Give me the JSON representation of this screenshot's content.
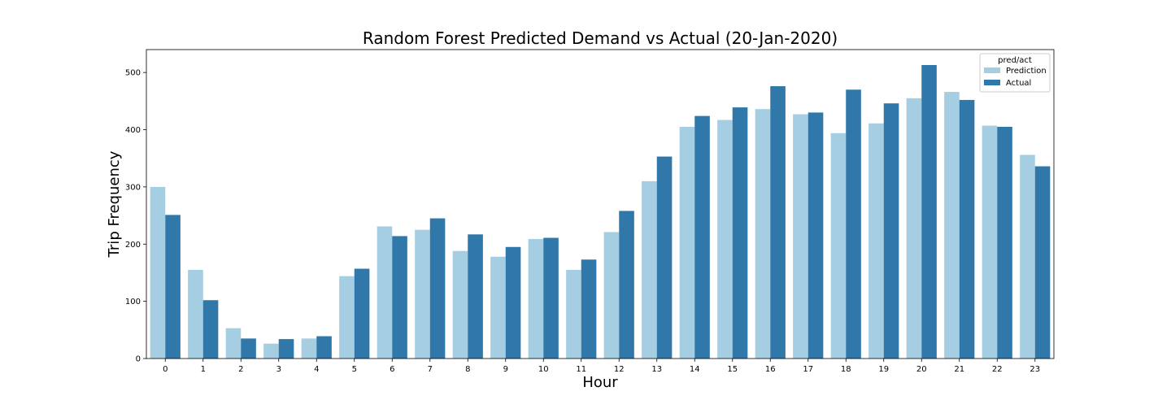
{
  "chart_data": {
    "type": "bar",
    "title": "Random Forest Predicted Demand vs Actual (20-Jan-2020)",
    "xlabel": "Hour",
    "ylabel": "Trip Frequency",
    "categories": [
      "0",
      "1",
      "2",
      "3",
      "4",
      "5",
      "6",
      "7",
      "8",
      "9",
      "10",
      "11",
      "12",
      "13",
      "14",
      "15",
      "16",
      "17",
      "18",
      "19",
      "20",
      "21",
      "22",
      "23"
    ],
    "ylim": [
      0,
      540
    ],
    "yticks": [
      0,
      100,
      200,
      300,
      400,
      500
    ],
    "grid": false,
    "legend": {
      "title": "pred/act",
      "placement": "top-right"
    },
    "series": [
      {
        "name": "Prediction",
        "color": "#a6cee3",
        "values": [
          300,
          155,
          53,
          26,
          35,
          144,
          231,
          225,
          188,
          178,
          209,
          155,
          221,
          310,
          405,
          417,
          436,
          427,
          394,
          411,
          455,
          466,
          407,
          356
        ]
      },
      {
        "name": "Actual",
        "color": "#2f78a9",
        "values": [
          251,
          102,
          35,
          34,
          39,
          157,
          214,
          245,
          217,
          195,
          211,
          173,
          258,
          353,
          424,
          439,
          476,
          430,
          470,
          446,
          513,
          452,
          405,
          336
        ]
      }
    ]
  }
}
